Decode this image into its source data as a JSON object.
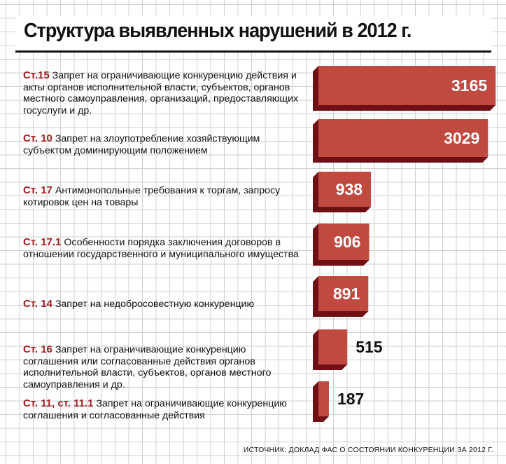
{
  "chart_data": {
    "type": "bar",
    "orientation": "horizontal",
    "title": "Структура выявленных нарушений в 2012 г.",
    "categories": [
      {
        "article": "Ст.15",
        "text": "Запрет на ограничивающие конкуренцию действия и акты органов исполнительной власти, субъектов, органов местного самоуправления, организаций, предоставляющих госуслуги и др."
      },
      {
        "article": "Ст. 10",
        "text": "Запрет на злоупотребление хозяйствующим субъектом доминирующим положением"
      },
      {
        "article": "Ст. 17",
        "text": "Антимонопольные требования к торгам, запросу котировок цен на товары"
      },
      {
        "article": "Ст. 17.1",
        "text": "Особенности порядка заключения договоров в отношении государственного и муниципального имущества"
      },
      {
        "article": "Ст. 14",
        "text": "Запрет на недобросовестную конкуренцию"
      },
      {
        "article": "Ст. 16",
        "text": "Запрет на ограничивающие конкуренцию соглашения или согласованные действия органов исполнительной власти, субъектов, органов местного самоуправления и др."
      },
      {
        "article": "Ст. 11, ст. 11.1",
        "text": "Запрет на ограничивающие конкуренцию соглашения и согласованные действия"
      }
    ],
    "values": [
      3165,
      3029,
      938,
      906,
      891,
      515,
      187
    ],
    "colors": {
      "bar": "#c04a40",
      "bar_shadow": "#6e1014",
      "article": "#9b1c1f"
    },
    "source": "ИСТОЧНИК: ДОКЛАД ФАС О СОСТОЯНИИ КОНКУРЕНЦИИ ЗА 2012 Г."
  }
}
